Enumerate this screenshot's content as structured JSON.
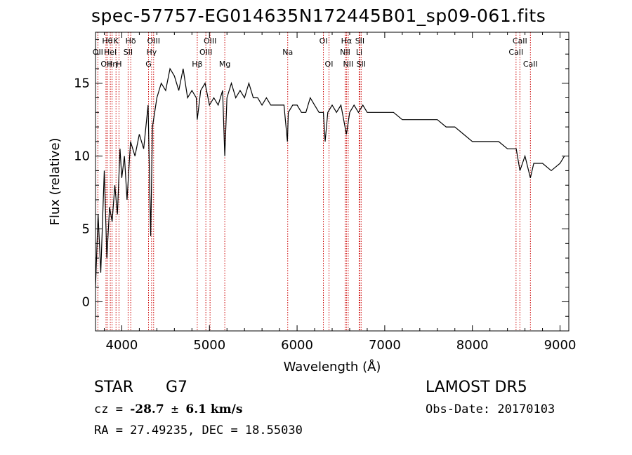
{
  "title": "spec-57757-EG014635N172445B01_sp09-061.fits",
  "footer": {
    "object_class": "STAR",
    "subclass": "G7",
    "survey": "LAMOST DR5",
    "cz_prefix": "cz = ",
    "cz_value": "-28.7",
    "cz_pm": " ± ",
    "cz_err": "6.1",
    "cz_unit": " km/s",
    "obs_date": "Obs-Date: 20170103",
    "radec": "RA =  27.49235, DEC =  18.55030"
  },
  "chart_data": {
    "type": "line",
    "xlabel": "Wavelength (Å)",
    "ylabel": "Flux (relative)",
    "xlim": [
      3700,
      9100
    ],
    "ylim": [
      -2,
      18.5
    ],
    "xticks": [
      4000,
      5000,
      6000,
      7000,
      8000,
      9000
    ],
    "yticks": [
      0,
      5,
      10,
      15
    ],
    "line_color": "#000000",
    "marker_color": "#cc0000",
    "series": [
      {
        "x": [
          3700,
          3730,
          3760,
          3800,
          3830,
          3860,
          3890,
          3920,
          3950,
          3980,
          4000,
          4030,
          4060,
          4100,
          4150,
          4200,
          4250,
          4300,
          4330,
          4350,
          4400,
          4450,
          4500,
          4550,
          4600,
          4650,
          4700,
          4750,
          4800,
          4850,
          4861,
          4900,
          4950,
          5000,
          5050,
          5100,
          5150,
          5175,
          5200,
          5250,
          5300,
          5350,
          5400,
          5450,
          5500,
          5550,
          5600,
          5650,
          5700,
          5750,
          5800,
          5850,
          5890,
          5900,
          5950,
          6000,
          6050,
          6100,
          6150,
          6200,
          6250,
          6300,
          6320,
          6350,
          6400,
          6450,
          6500,
          6563,
          6600,
          6650,
          6700,
          6750,
          6800,
          6850,
          6900,
          6950,
          7000,
          7100,
          7200,
          7300,
          7400,
          7500,
          7600,
          7700,
          7800,
          7900,
          8000,
          8100,
          8200,
          8300,
          8400,
          8500,
          8542,
          8600,
          8662,
          8700,
          8800,
          8900,
          9000,
          9050
        ],
        "y": [
          1.0,
          6.0,
          2.0,
          9.0,
          3.0,
          6.5,
          5.5,
          8.0,
          6.0,
          10.5,
          8.5,
          10.0,
          7.0,
          11.0,
          10.0,
          11.5,
          10.5,
          13.5,
          4.5,
          12.0,
          14.0,
          15.0,
          14.5,
          16.0,
          15.5,
          14.5,
          16.0,
          14.0,
          14.5,
          14.0,
          12.5,
          14.5,
          15.0,
          13.5,
          14.0,
          13.5,
          14.5,
          10.0,
          14.0,
          15.0,
          14.0,
          14.5,
          14.0,
          15.0,
          14.0,
          14.0,
          13.5,
          14.0,
          13.5,
          13.5,
          13.5,
          13.5,
          11.0,
          13.0,
          13.5,
          13.5,
          13.0,
          13.0,
          14.0,
          13.5,
          13.0,
          13.0,
          11.0,
          13.0,
          13.5,
          13.0,
          13.5,
          11.5,
          13.0,
          13.5,
          13.0,
          13.5,
          13.0,
          13.0,
          13.0,
          13.0,
          13.0,
          13.0,
          12.5,
          12.5,
          12.5,
          12.5,
          12.5,
          12.0,
          12.0,
          11.5,
          11.0,
          11.0,
          11.0,
          11.0,
          10.5,
          10.5,
          9.0,
          10.0,
          8.5,
          9.5,
          9.5,
          9.0,
          9.5,
          10.0
        ]
      }
    ],
    "lines": [
      {
        "wl": 3727,
        "label": "OII",
        "row": 2
      },
      {
        "wl": 3820,
        "label": "OII",
        "row": 3
      },
      {
        "wl": 3835,
        "label": "Hθ",
        "row": 1
      },
      {
        "wl": 3869,
        "label": "HeI",
        "row": 2
      },
      {
        "wl": 3889,
        "label": "Hη",
        "row": 3
      },
      {
        "wl": 3934,
        "label": "K",
        "row": 1
      },
      {
        "wl": 3968,
        "label": "H",
        "row": 3
      },
      {
        "wl": 4072,
        "label": "SII",
        "row": 2
      },
      {
        "wl": 4102,
        "label": "Hδ",
        "row": 1
      },
      {
        "wl": 4305,
        "label": "G",
        "row": 3
      },
      {
        "wl": 4340,
        "label": "Hγ",
        "row": 2
      },
      {
        "wl": 4363,
        "label": "OIII",
        "row": 1
      },
      {
        "wl": 4861,
        "label": "Hβ",
        "row": 3
      },
      {
        "wl": 4959,
        "label": "OIII",
        "row": 2
      },
      {
        "wl": 5007,
        "label": "OIII",
        "row": 1
      },
      {
        "wl": 5175,
        "label": "Mg",
        "row": 3
      },
      {
        "wl": 5893,
        "label": "Na",
        "row": 2
      },
      {
        "wl": 6300,
        "label": "OI",
        "row": 1
      },
      {
        "wl": 6364,
        "label": "OI",
        "row": 3
      },
      {
        "wl": 6548,
        "label": "NII",
        "row": 2
      },
      {
        "wl": 6563,
        "label": "Hα",
        "row": 1
      },
      {
        "wl": 6583,
        "label": "NII",
        "row": 3
      },
      {
        "wl": 6708,
        "label": "Li",
        "row": 2
      },
      {
        "wl": 6716,
        "label": "SII",
        "row": 1
      },
      {
        "wl": 6731,
        "label": "SII",
        "row": 3
      },
      {
        "wl": 8498,
        "label": "CaII",
        "row": 2
      },
      {
        "wl": 8542,
        "label": "CaII",
        "row": 1
      },
      {
        "wl": 8662,
        "label": "CaII",
        "row": 3
      }
    ]
  }
}
